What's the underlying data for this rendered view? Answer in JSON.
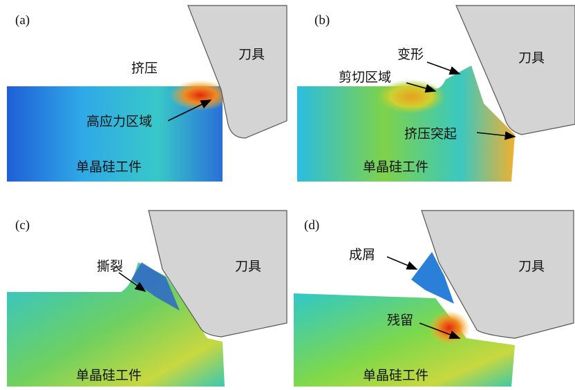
{
  "panels": [
    {
      "label": "(a)",
      "tool": "刀具",
      "workpiece": "单晶硅工件",
      "annotations": [
        "挤压",
        "高应力区域"
      ]
    },
    {
      "label": "(b)",
      "tool": "刀具",
      "workpiece": "单晶硅工件",
      "annotations": [
        "变形",
        "剪切区域",
        "挤压突起"
      ]
    },
    {
      "label": "(c)",
      "tool": "刀具",
      "workpiece": "单晶硅工件",
      "annotations": [
        "撕裂"
      ]
    },
    {
      "label": "(d)",
      "tool": "刀具",
      "workpiece": "单晶硅工件",
      "annotations": [
        "成屑",
        "残留"
      ]
    }
  ]
}
